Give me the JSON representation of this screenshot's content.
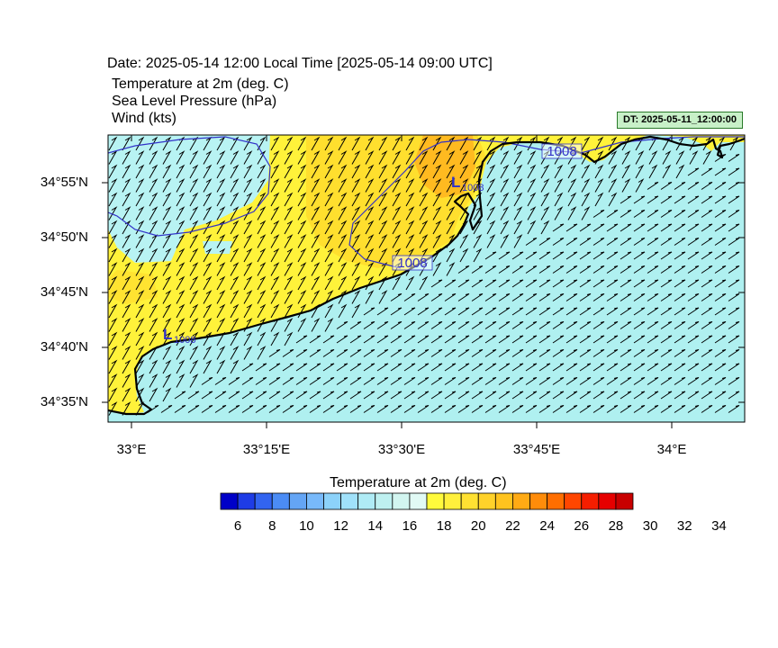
{
  "header": {
    "date_line": "Date: 2025-05-14  12:00 Local Time [2025-05-14  09:00 UTC]",
    "field_1": "Temperature at 2m   (deg. C)",
    "field_2": "Sea Level Pressure   (hPa)",
    "field_3": "Wind   (kts)",
    "dt_badge": "DT: 2025-05-11_12:00:00"
  },
  "map": {
    "lat_labels": [
      "34°55'N",
      "34°50'N",
      "34°45'N",
      "34°40'N",
      "34°35'N"
    ],
    "lon_labels": [
      "33°E",
      "33°15'E",
      "33°30'E",
      "33°45'E",
      "34°E"
    ],
    "pressure_contour_labels": [
      "1008",
      "1008"
    ],
    "low_markers": [
      {
        "symbol": "L",
        "value": "1008"
      },
      {
        "symbol": "L",
        "value": "1008"
      }
    ],
    "colors": {
      "sea": "#aff0f0",
      "warm_land": "#fff23a",
      "warmer_land": "#ffd92c",
      "hot_land": "#ffba20",
      "cool_land": "#b8f3f3",
      "coastline": "#000000",
      "isobar": "#3232c8"
    }
  },
  "colorbar": {
    "title": "Temperature at 2m  (deg. C)",
    "tick_labels": [
      "6",
      "8",
      "10",
      "12",
      "14",
      "16",
      "18",
      "20",
      "22",
      "24",
      "26",
      "28",
      "30",
      "32",
      "34"
    ],
    "colors": [
      "#0000c8",
      "#1e3ce6",
      "#3264f0",
      "#4b8cf5",
      "#64a5f5",
      "#78b9fa",
      "#8cd2fa",
      "#a0e1fa",
      "#afebf5",
      "#bef0f0",
      "#d2f5f0",
      "#e1faf5",
      "#fffa3c",
      "#fff03c",
      "#ffe132",
      "#ffd22a",
      "#ffc31e",
      "#ffaa14",
      "#ff8c0a",
      "#ff6e00",
      "#ff4600",
      "#f51e00",
      "#e60000",
      "#c80000"
    ]
  }
}
